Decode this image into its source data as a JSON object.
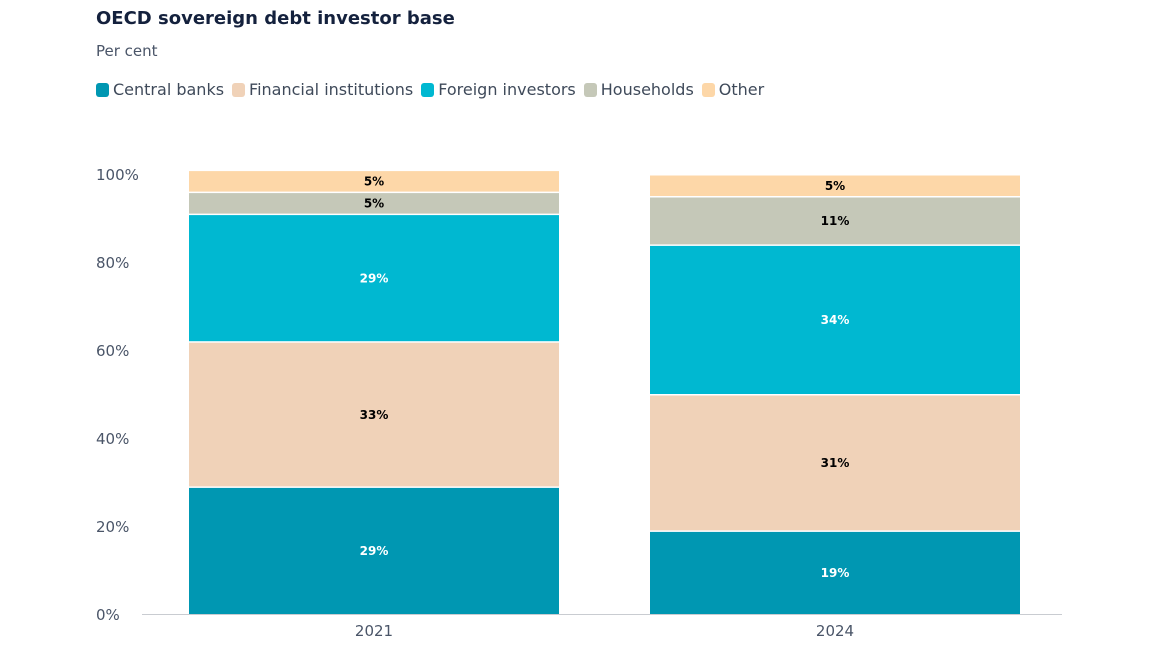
{
  "chart_data": {
    "type": "bar",
    "stacked": true,
    "title": "OECD sovereign debt investor base",
    "subtitle": "Per cent",
    "xlabel": "",
    "ylabel": "",
    "categories": [
      "2021",
      "2024"
    ],
    "ylim": [
      0,
      100
    ],
    "yticks": [
      "0%",
      "20%",
      "40%",
      "60%",
      "80%",
      "100%"
    ],
    "grid": false,
    "legend_position": "top-left",
    "series": [
      {
        "name": "Central banks",
        "color": "#0097b2",
        "label_color": "#ffffff",
        "values": [
          29,
          19
        ]
      },
      {
        "name": "Financial institutions",
        "color": "#f0d2b8",
        "label_color": "#000000",
        "values": [
          33,
          31
        ]
      },
      {
        "name": "Foreign investors",
        "color": "#00b8d1",
        "label_color": "#ffffff",
        "values": [
          29,
          34
        ]
      },
      {
        "name": "Households",
        "color": "#c5c8b8",
        "label_color": "#000000",
        "values": [
          5,
          11
        ]
      },
      {
        "name": "Other",
        "color": "#fdd7a8",
        "label_color": "#000000",
        "values": [
          5,
          5
        ]
      }
    ],
    "data_labels": [
      [
        "29%",
        "19%"
      ],
      [
        "33%",
        "31%"
      ],
      [
        "29%",
        "34%"
      ],
      [
        "5%",
        "11%"
      ],
      [
        "5%",
        "5%"
      ]
    ]
  }
}
